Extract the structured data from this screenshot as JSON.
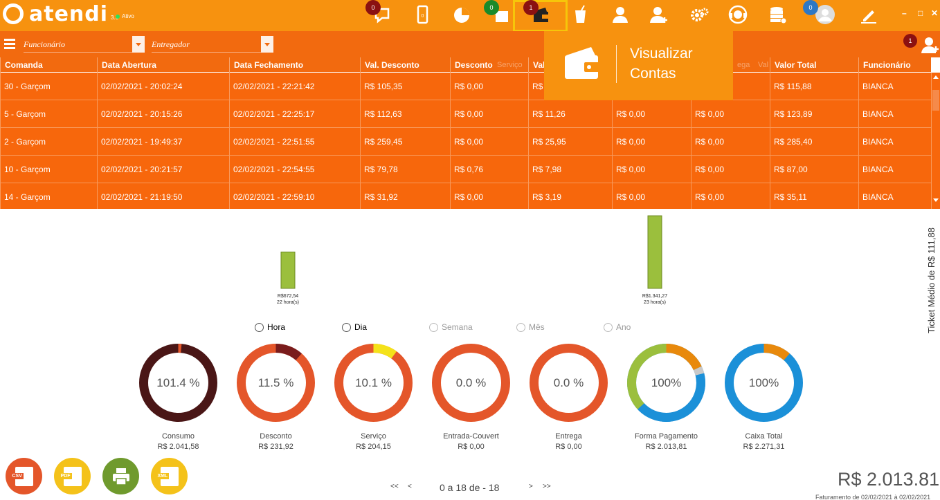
{
  "app": {
    "name": "atendi",
    "version": "3.5",
    "status": "Ativo"
  },
  "toolbar": {
    "badges": {
      "chat": "0",
      "card": "0",
      "accounts": "1",
      "database": "0"
    },
    "active_icon": "wallet-icon"
  },
  "tooltip": {
    "line1": "Visualizar",
    "line2": "Contas"
  },
  "filters": {
    "employee_placeholder": "Funcionário",
    "delivery_placeholder": "Entregador",
    "notification_count": "1"
  },
  "table": {
    "columns": [
      "Comanda",
      "Data Abertura",
      "Data Fechamento",
      "Val. Desconto",
      "Desconto",
      "Val",
      "",
      "",
      "Valor Total",
      "Funcionário"
    ],
    "hidden_header_fragments": [
      "Serviço",
      "ega",
      "Val"
    ],
    "rows": [
      [
        "30 - Garçom",
        "02/02/2021 - 20:02:24",
        "02/02/2021 - 22:21:42",
        "R$ 105,35",
        "R$ 0,00",
        "R$",
        "",
        "",
        "R$ 115,88",
        "BIANCA"
      ],
      [
        "5 - Garçom",
        "02/02/2021 - 20:15:26",
        "02/02/2021 - 22:25:17",
        "R$ 112,63",
        "R$ 0,00",
        "R$ 11,26",
        "R$ 0,00",
        "R$ 0,00",
        "R$ 123,89",
        "BIANCA"
      ],
      [
        "2 - Garçom",
        "02/02/2021 - 19:49:37",
        "02/02/2021 - 22:51:55",
        "R$ 259,45",
        "R$ 0,00",
        "R$ 25,95",
        "R$ 0,00",
        "R$ 0,00",
        "R$ 285,40",
        "BIANCA"
      ],
      [
        "10 - Garçom",
        "02/02/2021 - 20:21:57",
        "02/02/2021 - 22:54:55",
        "R$ 79,78",
        "R$ 0,76",
        "R$ 7,98",
        "R$ 0,00",
        "R$ 0,00",
        "R$ 87,00",
        "BIANCA"
      ],
      [
        "14 - Garçom",
        "02/02/2021 - 21:19:50",
        "02/02/2021 - 22:59:10",
        "R$ 31,92",
        "R$ 0,00",
        "R$ 3,19",
        "R$ 0,00",
        "R$ 0,00",
        "R$ 35,11",
        "BIANCA"
      ]
    ]
  },
  "chart_data": {
    "type": "bar",
    "categories": [
      "22 hora(s)",
      "23 hora(s)"
    ],
    "values": [
      672.54,
      1341.27
    ],
    "value_labels": [
      "R$672,54",
      "R$1.341,27"
    ],
    "ylim": [
      0,
      1341.27
    ],
    "grid": false,
    "bar_color": "#9bbf3d"
  },
  "ticket_medio": "Ticket Médio de R$ 111,88",
  "period_options": [
    {
      "label": "Hora",
      "enabled": true
    },
    {
      "label": "Dia",
      "enabled": true
    },
    {
      "label": "Semana",
      "enabled": false
    },
    {
      "label": "Mês",
      "enabled": false
    },
    {
      "label": "Ano",
      "enabled": false
    }
  ],
  "summaries": [
    {
      "pct": "101.4 %",
      "name": "Consumo",
      "value": "R$ 2.041,58",
      "ring": "#4a1616",
      "segments": [
        {
          "color": "#e4562a",
          "fraction": 0.014
        }
      ]
    },
    {
      "pct": "11.5 %",
      "name": "Desconto",
      "value": "R$ 231,92",
      "ring": "#e4562a",
      "segments": [
        {
          "color": "#7a1c1c",
          "fraction": 0.115
        }
      ]
    },
    {
      "pct": "10.1 %",
      "name": "Serviço",
      "value": "R$ 204,15",
      "ring": "#e4562a",
      "segments": [
        {
          "color": "#f4e21a",
          "fraction": 0.101
        }
      ]
    },
    {
      "pct": "0.0 %",
      "name": "Entrada-Couvert",
      "value": "R$ 0,00",
      "ring": "#e4562a",
      "segments": []
    },
    {
      "pct": "0.0 %",
      "name": "Entrega",
      "value": "R$ 0,00",
      "ring": "#e4562a",
      "segments": []
    },
    {
      "pct": "100%",
      "name": "Forma Pagamento",
      "value": "R$ 2.013,81",
      "ring": "#1b90d8",
      "segments": [
        {
          "color": "#e8890c",
          "fraction": 0.18
        },
        {
          "color": "#c9c9c9",
          "fraction": 0.03
        },
        {
          "color": "#1b90d8",
          "fraction": 0.42
        },
        {
          "color": "#9bbf3d",
          "fraction": 0.37
        }
      ]
    },
    {
      "pct": "100%",
      "name": "Caixa Total",
      "value": "R$ 2.271,31",
      "ring": "#1b90d8",
      "segments": [
        {
          "color": "#e8890c",
          "fraction": 0.115
        }
      ]
    }
  ],
  "exports": {
    "csv": "CSV",
    "pdf": "PDF",
    "xml": "XML"
  },
  "pager": {
    "first": "<<",
    "prev": "<",
    "text": "0 a 18 de - 18",
    "next": ">",
    "last": ">>"
  },
  "total": {
    "value": "R$ 2.013.81",
    "range": "Faturamento de 02/02/2021 à 02/02/2021"
  },
  "colors": {
    "topbar": "#f7920f",
    "table": "#f7670c",
    "highlight": "#f6c60a"
  }
}
